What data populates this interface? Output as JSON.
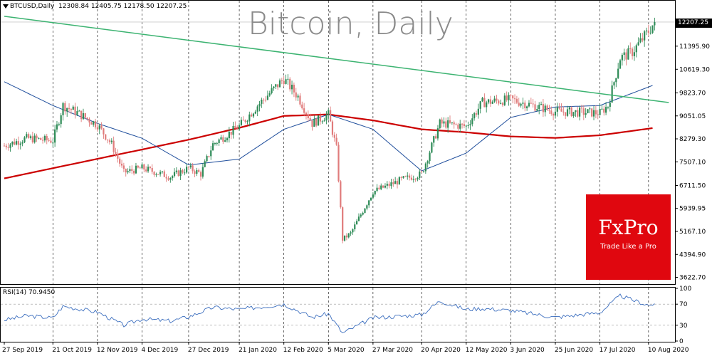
{
  "header": {
    "symbol": "BTCUSD,Daily",
    "ohlc": "12308.84 12405.75 12178.50 12207.25"
  },
  "watermark": "Bitcoin, Daily",
  "rsi_label": "RSI(14) 70.9450",
  "brand": {
    "name": "FxPro",
    "tagline": "Trade Like a Pro"
  },
  "colors": {
    "bull": "#2e8b57",
    "bear": "#e07b7b",
    "ma200": "#cc0000",
    "ma50": "#1f4e9c",
    "trendline": "#3cb371",
    "rsi": "#3d6fbf",
    "brand": "#e0070f"
  },
  "chart_data": {
    "type": "candlestick",
    "title": "Bitcoin, Daily",
    "price_axis": {
      "ticks": [
        "12207.25",
        "11395.90",
        "10619.30",
        "9823.70",
        "9051.05",
        "8279.30",
        "7507.10",
        "6711.50",
        "5939.95",
        "5167.10",
        "4394.90",
        "3622.70"
      ],
      "last_price": "12207.25",
      "range": [
        3420,
        12900
      ]
    },
    "date_axis": {
      "ticks": [
        "27 Sep 2019",
        "21 Oct 2019",
        "12 Nov 2019",
        "4 Dec 2019",
        "27 Dec 2019",
        "21 Jan 2020",
        "12 Feb 2020",
        "5 Mar 2020",
        "27 Mar 2020",
        "20 Apr 2020",
        "12 May 2020",
        "3 Jun 2020",
        "25 Jun 2020",
        "17 Jul 2020",
        "10 Aug 2020"
      ],
      "vertical_grid_at": [
        "21 Oct 2019",
        "12 Nov 2019",
        "4 Dec 2019",
        "27 Dec 2019",
        "21 Jan 2020",
        "12 Feb 2020",
        "5 Mar 2020",
        "27 Mar 2020",
        "20 Apr 2020",
        "12 May 2020",
        "3 Jun 2020",
        "25 Jun 2020",
        "17 Jul 2020",
        "10 Aug 2020"
      ]
    },
    "close_anchors": [
      [
        "27 Sep 2019",
        8050
      ],
      [
        "8 Oct 2019",
        8300
      ],
      [
        "21 Oct 2019",
        8220
      ],
      [
        "26 Oct 2019",
        9400
      ],
      [
        "1 Nov 2019",
        9200
      ],
      [
        "12 Nov 2019",
        8750
      ],
      [
        "19 Nov 2019",
        8100
      ],
      [
        "25 Nov 2019",
        7150
      ],
      [
        "4 Dec 2019",
        7300
      ],
      [
        "18 Dec 2019",
        7000
      ],
      [
        "27 Dec 2019",
        7300
      ],
      [
        "2 Jan 2020",
        7100
      ],
      [
        "8 Jan 2020",
        8100
      ],
      [
        "21 Jan 2020",
        8700
      ],
      [
        "30 Jan 2020",
        9400
      ],
      [
        "12 Feb 2020",
        10300
      ],
      [
        "19 Feb 2020",
        9700
      ],
      [
        "26 Feb 2020",
        8800
      ],
      [
        "5 Mar 2020",
        9100
      ],
      [
        "9 Mar 2020",
        7950
      ],
      [
        "12 Mar 2020",
        4900
      ],
      [
        "16 Mar 2020",
        5100
      ],
      [
        "27 Mar 2020",
        6500
      ],
      [
        "10 Apr 2020",
        6900
      ],
      [
        "20 Apr 2020",
        7100
      ],
      [
        "29 Apr 2020",
        8800
      ],
      [
        "12 May 2020",
        8700
      ],
      [
        "20 May 2020",
        9500
      ],
      [
        "3 Jun 2020",
        9600
      ],
      [
        "25 Jun 2020",
        9200
      ],
      [
        "17 Jul 2020",
        9150
      ],
      [
        "21 Jul 2020",
        9400
      ],
      [
        "27 Jul 2020",
        11000
      ],
      [
        "2 Aug 2020",
        11200
      ],
      [
        "10 Aug 2020",
        11900
      ],
      [
        "13 Aug 2020",
        12207
      ]
    ],
    "ma200_anchors": [
      [
        "27 Sep 2019",
        6950
      ],
      [
        "27 Dec 2019",
        8250
      ],
      [
        "21 Jan 2020",
        8650
      ],
      [
        "12 Feb 2020",
        9050
      ],
      [
        "5 Mar 2020",
        9100
      ],
      [
        "27 Mar 2020",
        8900
      ],
      [
        "20 Apr 2020",
        8600
      ],
      [
        "12 May 2020",
        8500
      ],
      [
        "3 Jun 2020",
        8360
      ],
      [
        "25 Jun 2020",
        8310
      ],
      [
        "17 Jul 2020",
        8400
      ],
      [
        "13 Aug 2020",
        8650
      ]
    ],
    "ma50_anchors": [
      [
        "27 Sep 2019",
        10200
      ],
      [
        "21 Oct 2019",
        9400
      ],
      [
        "12 Nov 2019",
        8800
      ],
      [
        "4 Dec 2019",
        8300
      ],
      [
        "27 Dec 2019",
        7400
      ],
      [
        "21 Jan 2020",
        7600
      ],
      [
        "12 Feb 2020",
        8600
      ],
      [
        "5 Mar 2020",
        9100
      ],
      [
        "27 Mar 2020",
        8600
      ],
      [
        "20 Apr 2020",
        7200
      ],
      [
        "12 May 2020",
        7800
      ],
      [
        "3 Jun 2020",
        9000
      ],
      [
        "25 Jun 2020",
        9350
      ],
      [
        "17 Jul 2020",
        9400
      ],
      [
        "13 Aug 2020",
        10100
      ]
    ],
    "trendline": [
      [
        "27 Sep 2019",
        12400
      ],
      [
        "20 Aug 2020",
        9500
      ]
    ],
    "rsi": {
      "label": "RSI(14) 70.9450",
      "ticks": [
        "100",
        "70",
        "30",
        "0"
      ],
      "last_value": 70.945,
      "anchors": [
        [
          "27 Sep 2019",
          40
        ],
        [
          "8 Oct 2019",
          48
        ],
        [
          "21 Oct 2019",
          44
        ],
        [
          "26 Oct 2019",
          66
        ],
        [
          "12 Nov 2019",
          55
        ],
        [
          "25 Nov 2019",
          30
        ],
        [
          "4 Dec 2019",
          42
        ],
        [
          "18 Dec 2019",
          38
        ],
        [
          "27 Dec 2019",
          46
        ],
        [
          "8 Jan 2020",
          64
        ],
        [
          "21 Jan 2020",
          60
        ],
        [
          "12 Feb 2020",
          70
        ],
        [
          "26 Feb 2020",
          45
        ],
        [
          "5 Mar 2020",
          52
        ],
        [
          "12 Mar 2020",
          15
        ],
        [
          "27 Mar 2020",
          44
        ],
        [
          "20 Apr 2020",
          50
        ],
        [
          "29 Apr 2020",
          76
        ],
        [
          "12 May 2020",
          60
        ],
        [
          "20 May 2020",
          62
        ],
        [
          "3 Jun 2020",
          58
        ],
        [
          "25 Jun 2020",
          45
        ],
        [
          "17 Jul 2020",
          54
        ],
        [
          "27 Jul 2020",
          86
        ],
        [
          "2 Aug 2020",
          78
        ],
        [
          "10 Aug 2020",
          68
        ],
        [
          "13 Aug 2020",
          71
        ]
      ]
    }
  }
}
